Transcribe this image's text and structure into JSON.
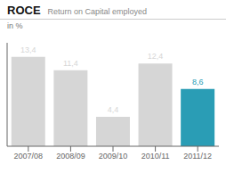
{
  "chart_data": {
    "type": "bar",
    "title": "ROCE",
    "subtitle": "Return on Capital employed",
    "ylabel": "in %",
    "categories": [
      "2007/08",
      "2008/09",
      "2009/10",
      "2010/11",
      "2011/12"
    ],
    "values": [
      13.4,
      11.4,
      4.4,
      12.4,
      8.6
    ],
    "value_labels": [
      "13,4",
      "11,4",
      "4,4",
      "12,4",
      "8,6"
    ],
    "colors": [
      "#d6d6d6",
      "#d6d6d6",
      "#d6d6d6",
      "#d6d6d6",
      "#2a9db5"
    ],
    "ylim": [
      0,
      15.5
    ],
    "data_labels": true,
    "tick_labels": "x",
    "grid": false
  }
}
